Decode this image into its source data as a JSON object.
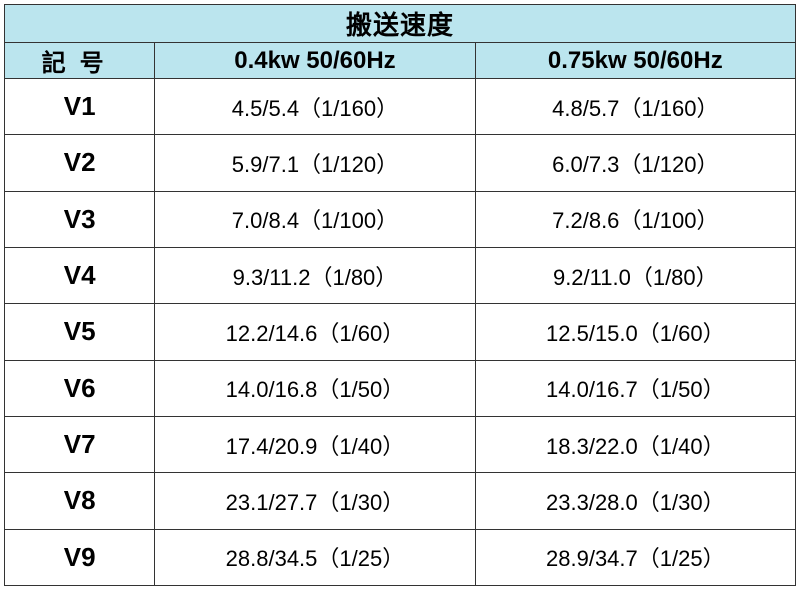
{
  "table": {
    "title": "搬送速度",
    "columns": {
      "symbol": "記号",
      "a": "0.4kw 50/60Hz",
      "b": "0.75kw 50/60Hz"
    },
    "widths": {
      "symbol_pct": 19,
      "a_pct": 40.5,
      "b_pct": 40.5
    },
    "header_bg": "#bbe5ee",
    "border_color": "#333333",
    "title_fontsize": 26,
    "header_fontsize": 24,
    "symbol_fontsize": 26,
    "value_fontsize": 22,
    "rows": [
      {
        "symbol": "V1",
        "a": "4.5/5.4（1/160）",
        "b": "4.8/5.7（1/160）"
      },
      {
        "symbol": "V2",
        "a": "5.9/7.1（1/120）",
        "b": "6.0/7.3（1/120）"
      },
      {
        "symbol": "V3",
        "a": "7.0/8.4（1/100）",
        "b": "7.2/8.6（1/100）"
      },
      {
        "symbol": "V4",
        "a": "9.3/11.2（1/80）",
        "b": "9.2/11.0（1/80）"
      },
      {
        "symbol": "V5",
        "a": "12.2/14.6（1/60）",
        "b": "12.5/15.0（1/60）"
      },
      {
        "symbol": "V6",
        "a": "14.0/16.8（1/50）",
        "b": "14.0/16.7（1/50）"
      },
      {
        "symbol": "V7",
        "a": "17.4/20.9（1/40）",
        "b": "18.3/22.0（1/40）"
      },
      {
        "symbol": "V8",
        "a": "23.1/27.7（1/30）",
        "b": "23.3/28.0（1/30）"
      },
      {
        "symbol": "V9",
        "a": "28.8/34.5（1/25）",
        "b": "28.9/34.7（1/25）"
      }
    ]
  }
}
